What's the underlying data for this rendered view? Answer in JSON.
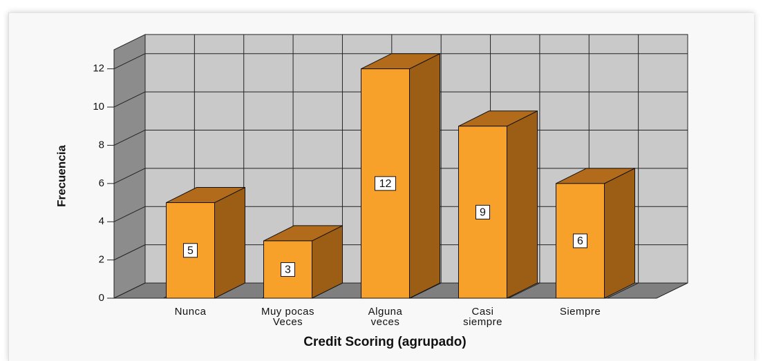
{
  "chart_data": {
    "type": "bar3d",
    "x_label": "Credit Scoring (agrupado)",
    "y_label": "Frecuencia",
    "categories": [
      "Nunca",
      "Muy pocas Veces",
      "Alguna veces",
      "Casi siempre",
      "Siempre"
    ],
    "values": [
      5,
      3,
      12,
      9,
      6
    ],
    "color": "#f7a12a",
    "ylim": [
      0,
      13
    ],
    "yticks": [
      0,
      2,
      4,
      6,
      8,
      10,
      12
    ],
    "grid": true
  }
}
